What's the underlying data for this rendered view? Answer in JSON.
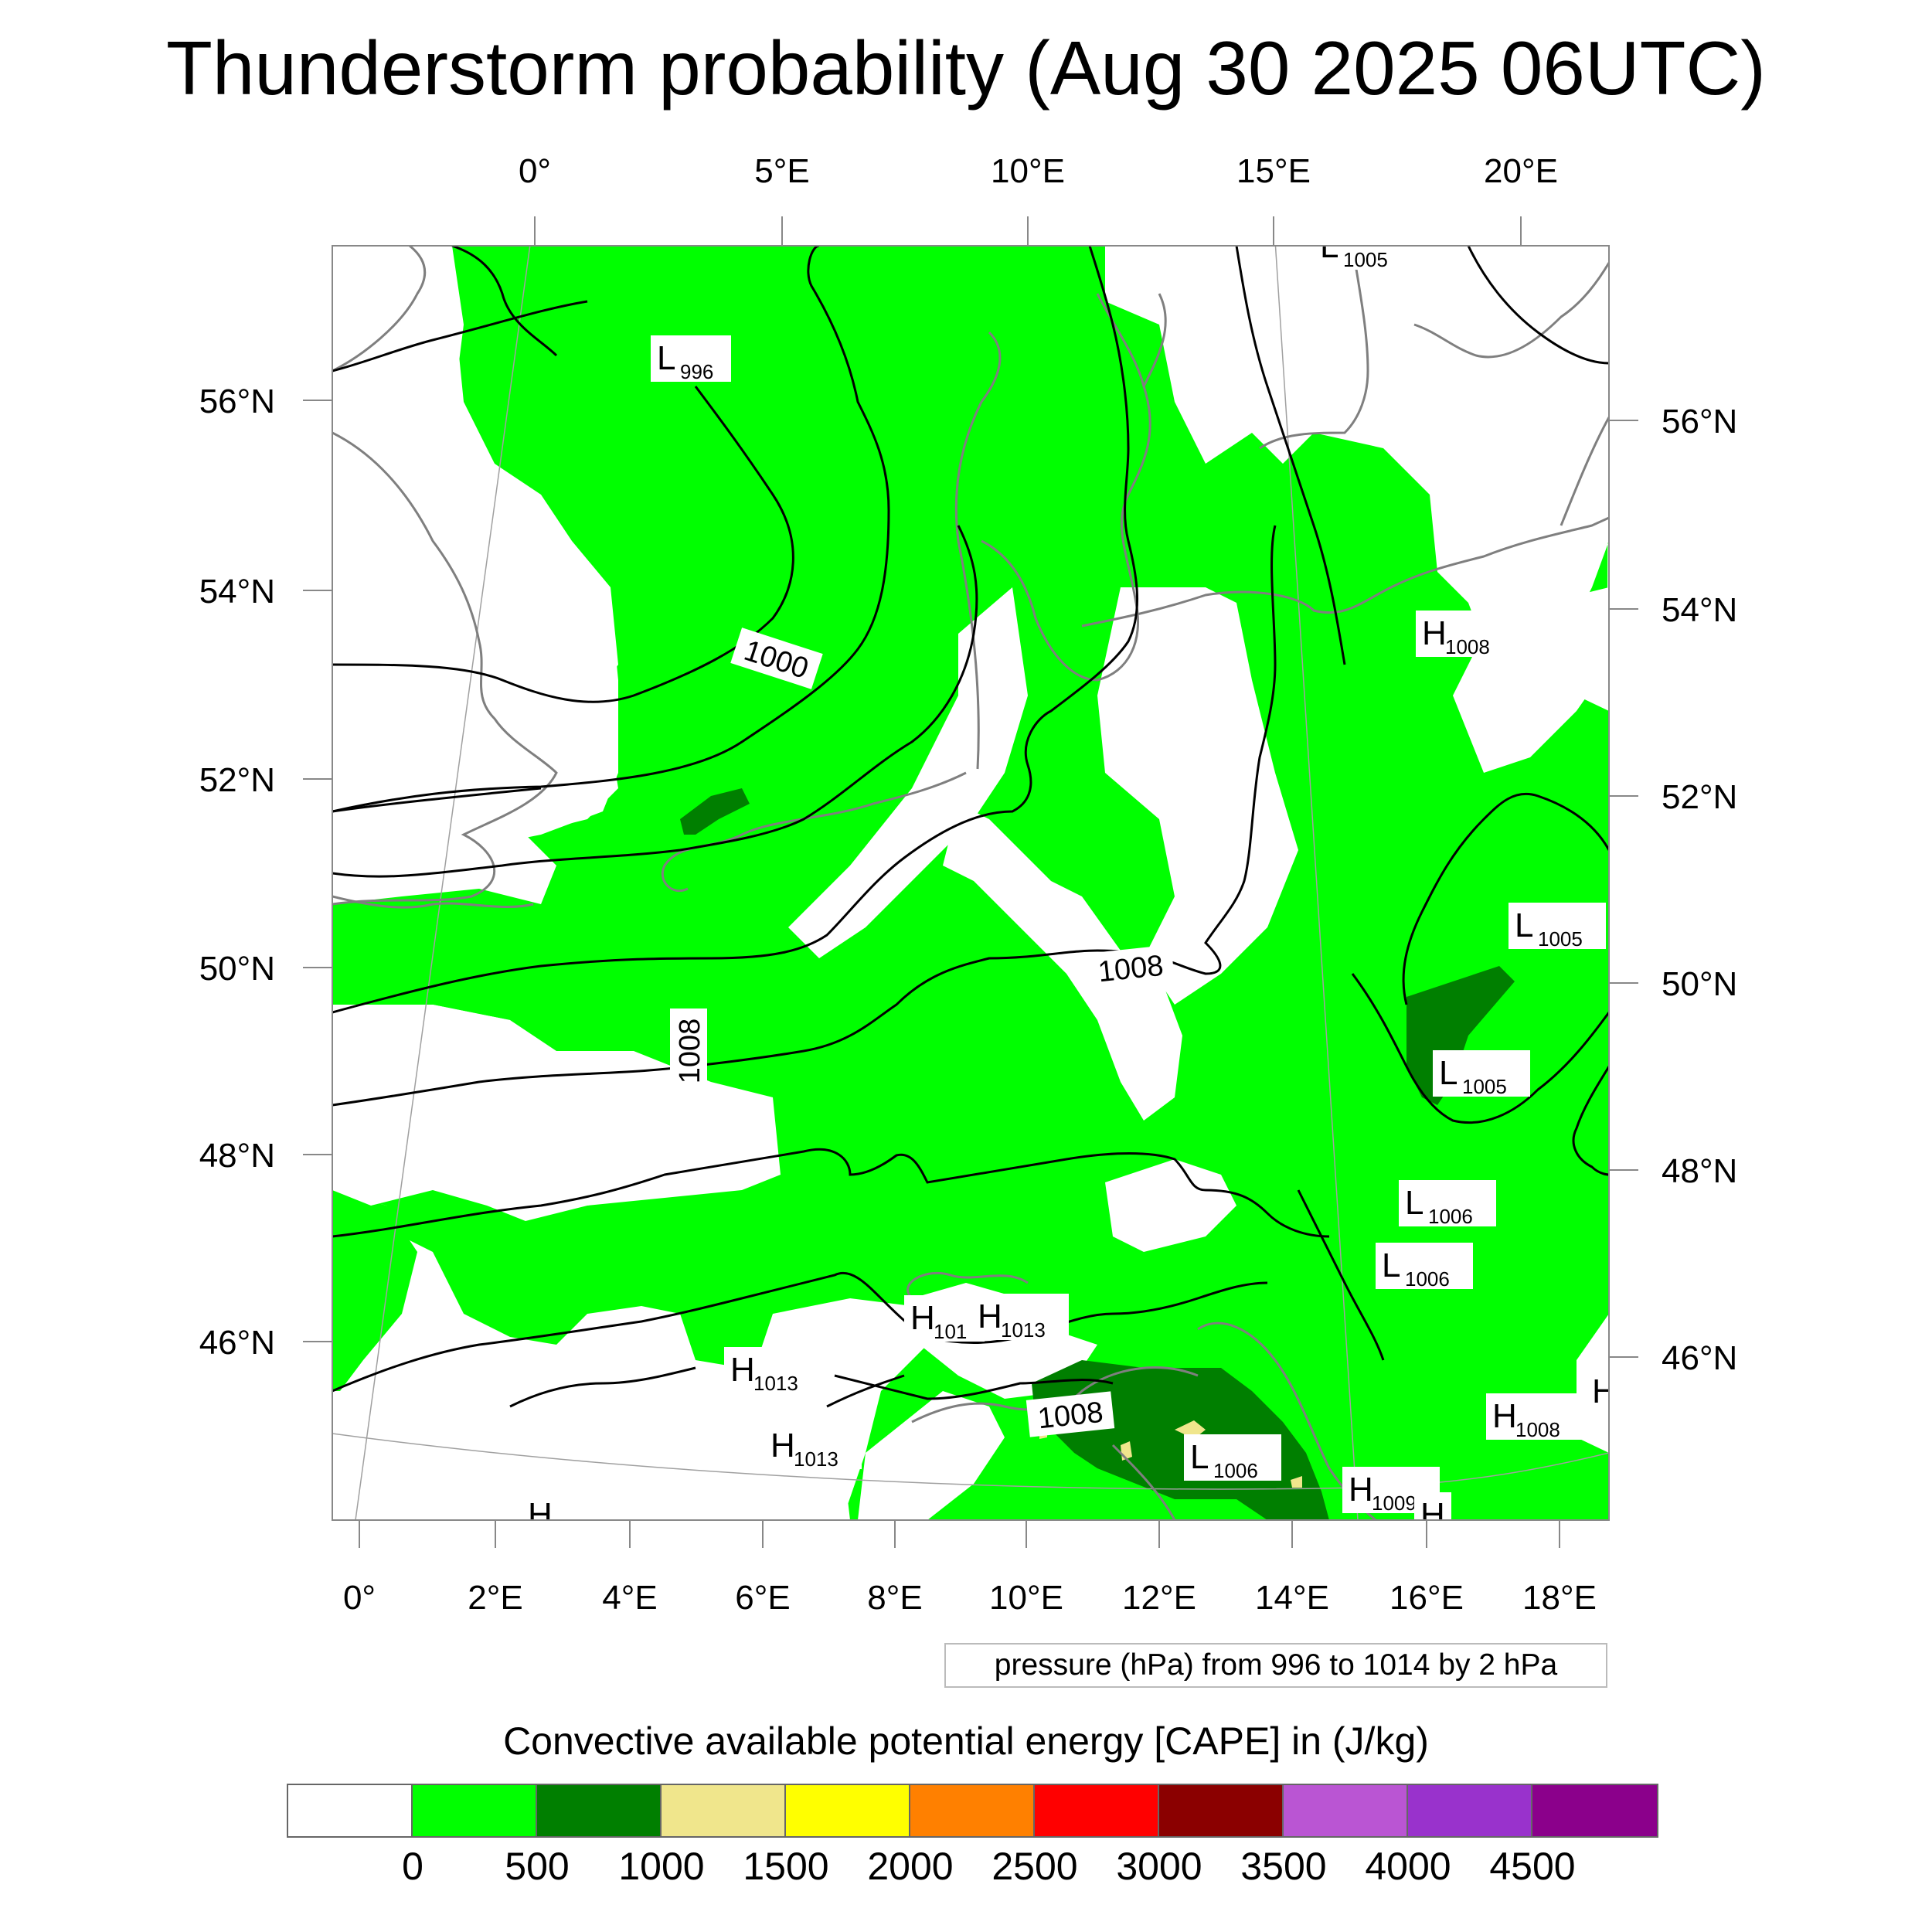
{
  "title": "Thunderstorm probability (Aug 30 2025 06UTC)",
  "top_lon_labels": [
    "0°",
    "5°E",
    "10°E",
    "15°E",
    "20°E"
  ],
  "bottom_lon_labels": [
    "0°",
    "2°E",
    "4°E",
    "6°E",
    "8°E",
    "10°E",
    "12°E",
    "14°E",
    "16°E",
    "18°E"
  ],
  "left_lat_labels": [
    "56°N",
    "54°N",
    "52°N",
    "50°N",
    "48°N",
    "46°N"
  ],
  "right_lat_labels": [
    "56°N",
    "54°N",
    "52°N",
    "50°N",
    "48°N",
    "46°N"
  ],
  "pressure_centers": [
    {
      "letter": "L",
      "value": "1005"
    },
    {
      "letter": "L",
      "value": "996"
    },
    {
      "letter": "H",
      "value": "1008"
    },
    {
      "letter": "L",
      "value": "1005"
    },
    {
      "letter": "L",
      "value": "1005"
    },
    {
      "letter": "L",
      "value": "1006"
    },
    {
      "letter": "L",
      "value": "1006"
    },
    {
      "letter": "H",
      "value": "101"
    },
    {
      "letter": "H",
      "value": "1013"
    },
    {
      "letter": "H",
      "value": "1013"
    },
    {
      "letter": "H",
      "value": "1013"
    },
    {
      "letter": "H",
      "value": "1008"
    },
    {
      "letter": "L",
      "value": "1006"
    },
    {
      "letter": "H",
      "value": "1009"
    },
    {
      "letter": "H",
      "value": ""
    },
    {
      "letter": "H",
      "value": ""
    },
    {
      "letter": "H",
      "value": ""
    }
  ],
  "contour_labels": [
    "1000",
    "1008",
    "1008",
    "1008"
  ],
  "contour_legend": "pressure (hPa) from 996 to 1014 by 2 hPa",
  "colorbar": {
    "title": "Convective available potential energy [CAPE] in (J/kg)",
    "colors": [
      "#ffffff",
      "#00ff00",
      "#007f00",
      "#f0e68c",
      "#ffff00",
      "#ff8000",
      "#ff0000",
      "#8b0000",
      "#ba55d3",
      "#9932cc",
      "#8b008b"
    ],
    "labels": [
      "0",
      "500",
      "1000",
      "1500",
      "2000",
      "2500",
      "3000",
      "3500",
      "4000",
      "4500"
    ]
  }
}
